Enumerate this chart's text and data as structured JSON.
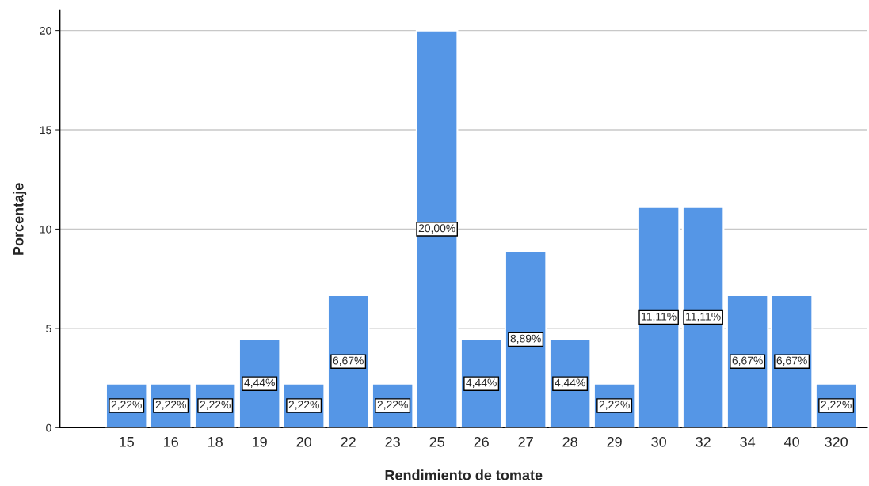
{
  "chart_data": {
    "type": "bar",
    "xlabel": "Rendimiento de tomate",
    "ylabel": "Porcentaje",
    "categories": [
      "15",
      "16",
      "18",
      "19",
      "20",
      "22",
      "23",
      "25",
      "26",
      "27",
      "28",
      "29",
      "30",
      "32",
      "34",
      "40",
      "320"
    ],
    "values": [
      2.22,
      2.22,
      2.22,
      4.44,
      2.22,
      6.67,
      2.22,
      20.0,
      4.44,
      8.89,
      4.44,
      2.22,
      11.11,
      11.11,
      6.67,
      6.67,
      2.22
    ],
    "value_labels": [
      "2,22%",
      "2,22%",
      "2,22%",
      "4,44%",
      "2,22%",
      "6,67%",
      "2,22%",
      "20,00%",
      "4,44%",
      "8,89%",
      "4,44%",
      "2,22%",
      "11,11%",
      "11,11%",
      "6,67%",
      "6,67%",
      "2,22%"
    ],
    "color": "#5596e6",
    "ylim": [
      0,
      21
    ],
    "yticks": [
      0,
      5,
      10,
      15,
      20
    ],
    "grid": "y",
    "legend": false
  }
}
